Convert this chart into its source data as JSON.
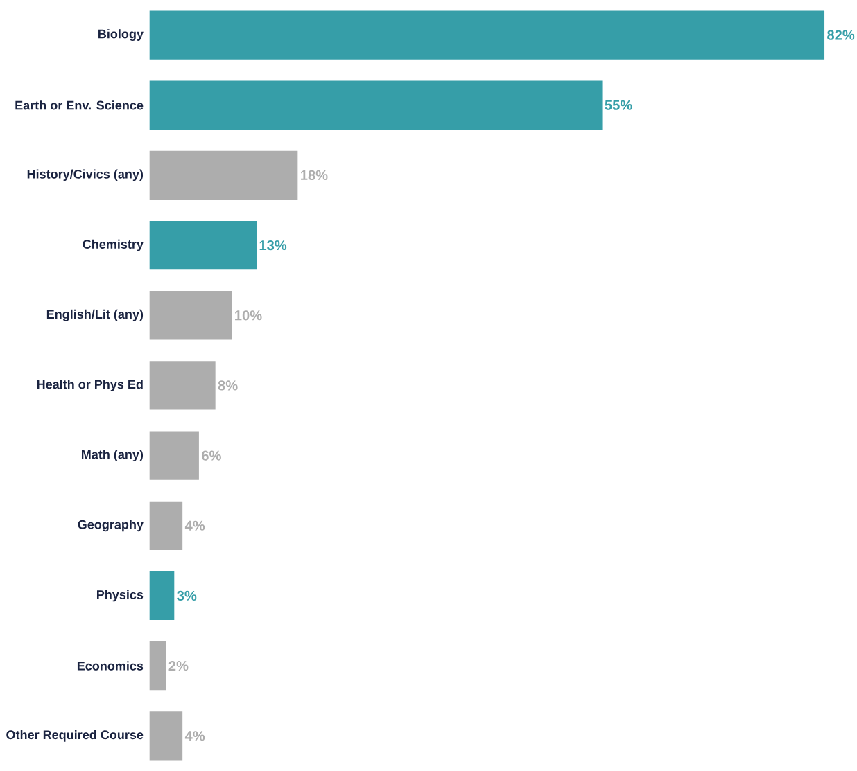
{
  "chart_data": {
    "type": "bar",
    "orientation": "horizontal",
    "categories": [
      "Biology",
      "Earth or Env. Science",
      "History/Civics (any)",
      "Chemistry",
      "English/Lit (any)",
      "Health or Phys Ed",
      "Math (any)",
      "Geography",
      "Physics",
      "Economics",
      "Other Required Course"
    ],
    "values": [
      82,
      55,
      18,
      13,
      10,
      8,
      6,
      4,
      3,
      2,
      4
    ],
    "value_labels": [
      "82%",
      "55%",
      "18%",
      "13%",
      "10%",
      "8%",
      "6%",
      "4%",
      "3%",
      "2%",
      "4%"
    ],
    "colors": [
      "#369ea8",
      "#369ea8",
      "#adadad",
      "#369ea8",
      "#adadad",
      "#adadad",
      "#adadad",
      "#adadad",
      "#369ea8",
      "#adadad",
      "#adadad"
    ],
    "tick_labels": "y"
  }
}
